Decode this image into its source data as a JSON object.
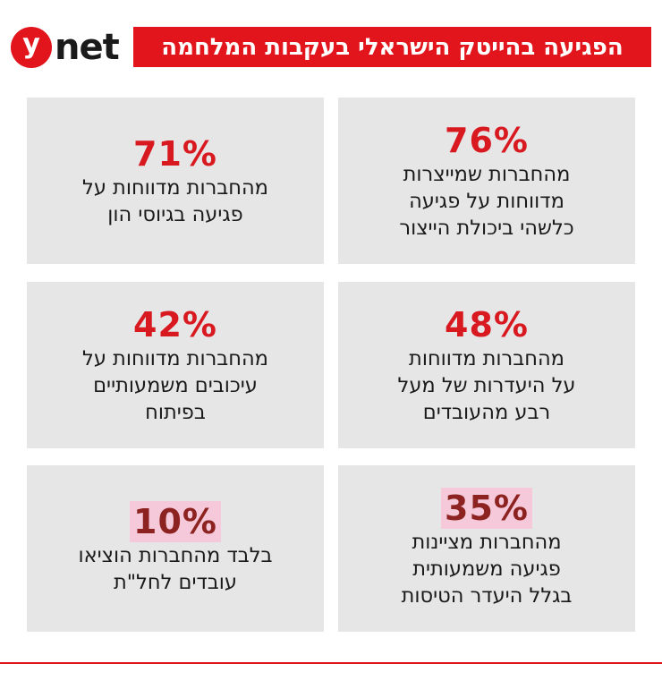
{
  "header": {
    "logo_letter": "y",
    "logo_word": "net",
    "title": "הפגיעה בהייטק הישראלי בעקבות המלחמה"
  },
  "colors": {
    "accent": "#e2141c",
    "percent_red": "#d81920",
    "percent_dark": "#8c2321",
    "highlight": "#f6c9da",
    "card_bg": "#e6e6e7"
  },
  "chart_data": {
    "type": "table",
    "title": "הפגיעה בהייטק הישראלי בעקבות המלחמה",
    "unit": "%",
    "items": [
      {
        "value": 76,
        "label": "76%",
        "text": "מהחברות שמייצרות\nמדווחות על פגיעה\nכלשהי ביכולת הייצור"
      },
      {
        "value": 71,
        "label": "71%",
        "text": "מהחברות מדווחות על\nפגיעה בגיוסי הון"
      },
      {
        "value": 48,
        "label": "48%",
        "text": "מהחברות מדווחות\nעל היעדרות של מעל\nרבע מהעובדים"
      },
      {
        "value": 42,
        "label": "42%",
        "text": "מהחברות מדווחות על\nעיכובים משמעותיים\nבפיתוח"
      },
      {
        "value": 35,
        "label": "35%",
        "text": "מהחברות מציינות\nפגיעה משמעותית\nבגלל היעדר הטיסות"
      },
      {
        "value": 10,
        "label": "10%",
        "text": "בלבד מהחברות הוציאו\nעובדים לחל\"ת"
      }
    ]
  }
}
